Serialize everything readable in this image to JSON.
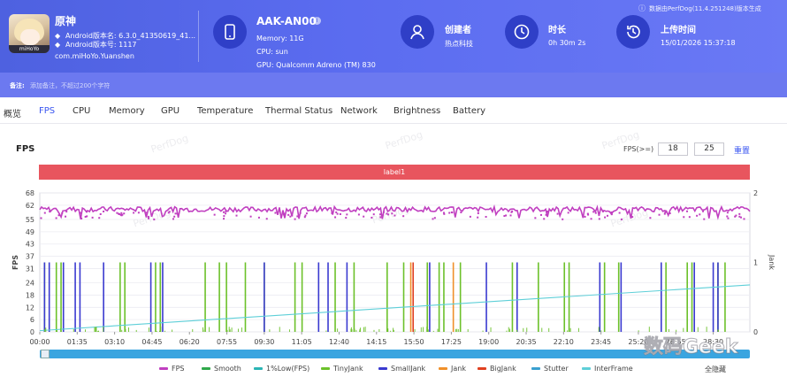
{
  "header": {
    "app": {
      "name": "原神",
      "icon_tag": "miHoYo",
      "version": "Android版本名: 6.3.0_41350619_41...",
      "version_code": "Android版本号: 1117",
      "package": "com.miHoYo.Yuanshen"
    },
    "device": {
      "name": "AAK-AN00",
      "memory": "Memory: 11G",
      "cpu": "CPU: sun",
      "gpu": "GPU: Qualcomm Adreno (TM) 830"
    },
    "creator": {
      "label": "创建者",
      "value": "热点科技"
    },
    "duration": {
      "label": "时长",
      "value": "0h 30m 2s"
    },
    "upload": {
      "label": "上传时间",
      "value": "15/01/2026 15:37:18"
    },
    "source_note": "数据由PerfDog(11.4.251248)版本生成"
  },
  "note": {
    "label": "备注:",
    "placeholder": "添加备注，不超过200个字符"
  },
  "tabs": [
    "概览",
    "FPS",
    "CPU",
    "Memory",
    "GPU",
    "Temperature",
    "Thermal Status",
    "Network",
    "Brightness",
    "Battery"
  ],
  "active_tab": "FPS",
  "panel": {
    "title": "FPS",
    "threshold_label": "FPS(>=)",
    "threshold_1": "18",
    "threshold_2": "25",
    "reset": "重置",
    "label_bar": "label1",
    "watermark": "PerfDog",
    "corner_watermark": "数码Geek"
  },
  "chart_data": {
    "type": "line",
    "ylabel_left": "FPS",
    "ylabel_right": "Jank",
    "y_ticks_left": [
      0,
      6,
      12,
      18,
      24,
      31,
      37,
      43,
      49,
      55,
      62,
      68
    ],
    "y_ticks_right": [
      0,
      1,
      2
    ],
    "ylim_left": [
      0,
      68
    ],
    "ylim_right": [
      0,
      2
    ],
    "x_ticks": [
      "00:00",
      "01:35",
      "03:10",
      "04:45",
      "06:20",
      "07:55",
      "09:30",
      "11:05",
      "12:40",
      "14:15",
      "15:50",
      "17:25",
      "19:00",
      "20:35",
      "22:10",
      "23:45",
      "25:20",
      "26:55",
      "28:30"
    ],
    "series": [
      {
        "name": "FPS",
        "color": "#c03fc0",
        "typical": 60,
        "range": [
          55,
          62
        ]
      },
      {
        "name": "Smooth",
        "color": "#2fa84a"
      },
      {
        "name": "1%Low(FPS)",
        "color": "#2bb5b5"
      },
      {
        "name": "TinyJank",
        "color": "#6cc12a",
        "jank_times_min": [
          0.2,
          0.7,
          0.9,
          3.4,
          3.6,
          4.9,
          5.1,
          7.0,
          7.6,
          7.9,
          8.7,
          9.5,
          10.8,
          11.1,
          12.5,
          13.3,
          14.7,
          15.4,
          16.4,
          16.9,
          17.1,
          17.8,
          20.0,
          21.1,
          22.2,
          22.4,
          23.9,
          24.5,
          26.5,
          27.4,
          27.6,
          28.7,
          29.0
        ]
      },
      {
        "name": "SmallJank",
        "color": "#3a3ad0",
        "jank_times_min": [
          0.2,
          0.4,
          1.0,
          1.5,
          1.7,
          2.7,
          4.7,
          5.2,
          9.5,
          11.8,
          12.2,
          13.0,
          16.5,
          18.9,
          20.2,
          23.7,
          24.6,
          26.3,
          27.7,
          28.5,
          28.7
        ]
      },
      {
        "name": "Jank",
        "color": "#f0902a",
        "jank_times_min": [
          15.7,
          17.5
        ]
      },
      {
        "name": "BigJank",
        "color": "#e04020",
        "jank_times_min": [
          15.8
        ]
      },
      {
        "name": "Stutter",
        "color": "#3aa0d0"
      },
      {
        "name": "InterFrame",
        "color": "#5ecfd8",
        "start": 0.6,
        "end": 23.0
      }
    ],
    "legend_position": "bottom",
    "show_all_label": "全隐藏"
  }
}
